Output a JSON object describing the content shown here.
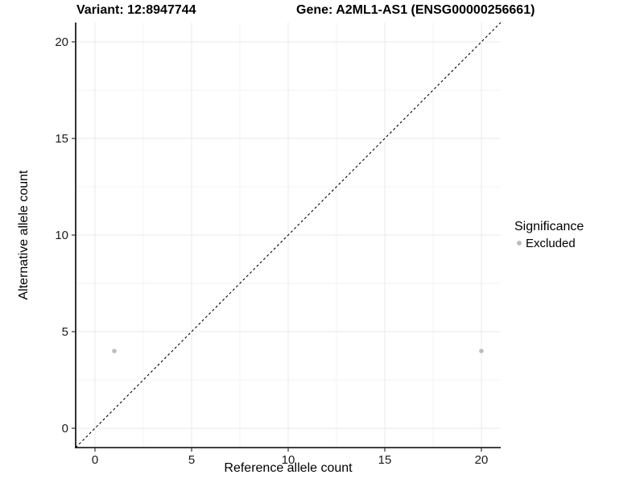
{
  "chart_data": {
    "type": "scatter",
    "title_variant": "Variant: 12:8947744",
    "title_gene": "Gene: A2ML1-AS1 (ENSG00000256661)",
    "xlabel": "Reference allele count",
    "ylabel": "Alternative allele count",
    "xlim": [
      -1,
      21
    ],
    "ylim": [
      -1,
      21
    ],
    "xticks": [
      0,
      5,
      10,
      15,
      20
    ],
    "yticks": [
      0,
      5,
      10,
      15,
      20
    ],
    "xticks_minor": [
      2.5,
      7.5,
      12.5,
      17.5
    ],
    "yticks_minor": [
      2.5,
      7.5,
      12.5,
      17.5
    ],
    "grid": "major+minor",
    "points": [
      {
        "x": 1,
        "y": 4,
        "series": "Excluded"
      },
      {
        "x": 20,
        "y": 4,
        "series": "Excluded"
      }
    ],
    "identity_line": {
      "style": "dashed",
      "from": [
        -1,
        -1
      ],
      "to": [
        21,
        21
      ]
    },
    "legend": {
      "title": "Significance",
      "position": "right",
      "items": [
        {
          "label": "Excluded",
          "color": "#bdbdbd"
        }
      ]
    },
    "colors": {
      "point": "#bdbdbd",
      "axis_line": "#000000",
      "tick_mark": "#333333",
      "tick_label": "#1a1a1a",
      "grid_major": "#e8e8e8",
      "grid_minor": "#f3f3f3",
      "identity_line": "#000000"
    }
  }
}
